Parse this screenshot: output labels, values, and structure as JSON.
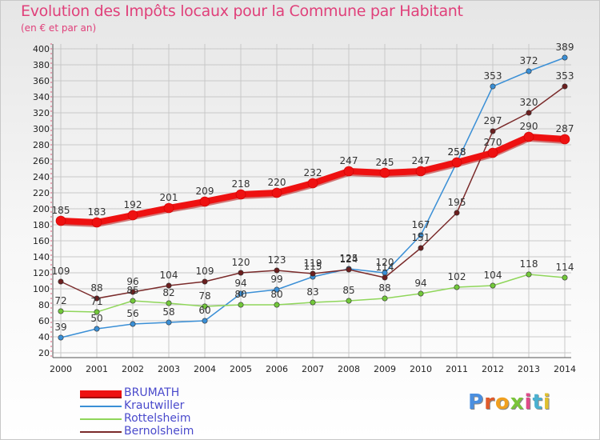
{
  "title": "Evolution des Impôts locaux pour la Commune par Habitant",
  "subtitle": "(en € et par an)",
  "logo_text": "Proxiti",
  "colors": {
    "title": "#e0407a",
    "grid": "#c8c8c8",
    "axis_text": "#222222",
    "legend_text": "#4a4acc"
  },
  "chart_data": {
    "type": "line",
    "title": "Evolution des Impôts locaux pour la Commune par Habitant",
    "subtitle": "(en € et par an)",
    "xlabel": "",
    "ylabel": "",
    "ylim": [
      20,
      400
    ],
    "yticks": [
      20,
      40,
      60,
      80,
      100,
      120,
      140,
      160,
      180,
      200,
      220,
      240,
      260,
      280,
      300,
      320,
      340,
      360,
      380,
      400
    ],
    "grid": true,
    "legend_position": "bottom-left",
    "x": [
      "2000",
      "2001",
      "2002",
      "2003",
      "2004",
      "2005",
      "2006",
      "2007",
      "2008",
      "2009",
      "2010",
      "2011",
      "2012",
      "2013",
      "2014"
    ],
    "series": [
      {
        "name": "Krautwiller",
        "color": "#3a8fd6",
        "marker": "#3a8fd6",
        "width": 1.5,
        "values": [
          39,
          50,
          56,
          58,
          60,
          94,
          99,
          115,
          125,
          120,
          167,
          258,
          353,
          372,
          389
        ]
      },
      {
        "name": "Rottelsheim",
        "color": "#8fd65a",
        "marker": "#72c83a",
        "width": 1.5,
        "values": [
          72,
          71,
          85,
          82,
          78,
          80,
          80,
          83,
          85,
          88,
          94,
          102,
          104,
          118,
          114
        ]
      },
      {
        "name": "Bernolsheim",
        "color": "#7a2a2a",
        "marker": "#6b1f1f",
        "width": 1.5,
        "values": [
          109,
          88,
          96,
          104,
          109,
          120,
          123,
          119,
          124,
          114,
          151,
          195,
          297,
          320,
          353
        ]
      },
      {
        "name": "BRUMATH",
        "color": "#ee1111",
        "marker": "#ee1111",
        "width": 8,
        "values": [
          185,
          183,
          192,
          201,
          209,
          218,
          220,
          232,
          247,
          245,
          247,
          258,
          270,
          290,
          287
        ]
      }
    ]
  },
  "legend": [
    {
      "label": "BRUMATH",
      "color": "#ee1111",
      "thickness": 8
    },
    {
      "label": "Krautwiller",
      "color": "#3a8fd6",
      "thickness": 2
    },
    {
      "label": "Rottelsheim",
      "color": "#8fd65a",
      "thickness": 2
    },
    {
      "label": "Bernolsheim",
      "color": "#7a2a2a",
      "thickness": 2
    }
  ]
}
